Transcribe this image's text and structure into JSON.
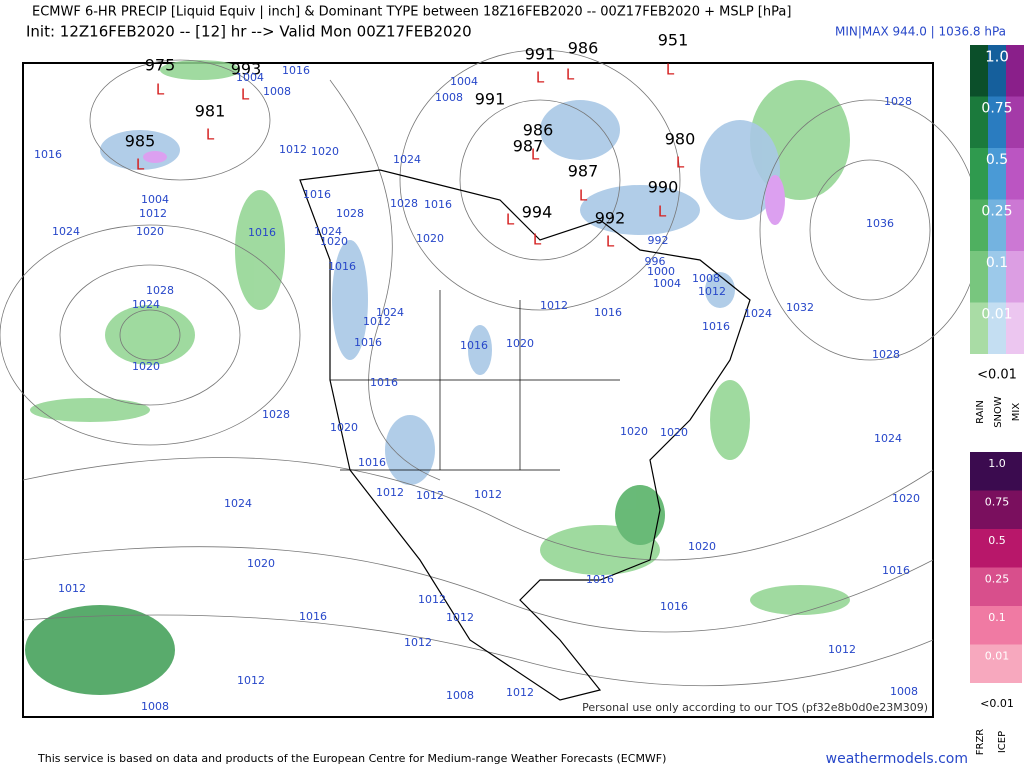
{
  "header": {
    "title": "ECMWF 6-HR PRECIP [Liquid Equiv | inch] & Dominant TYPE between 18Z16FEB2020 -- 00Z17FEB2020 + MSLP [hPa]",
    "subtitle": "Init: 12Z16FEB2020 -- [12] hr --> Valid Mon 00Z17FEB2020",
    "minmax": "MIN|MAX 944.0 | 1036.8 hPa"
  },
  "map": {
    "pressure_centers": [
      "975",
      "993",
      "981",
      "985",
      "991",
      "986",
      "951",
      "991",
      "986",
      "987",
      "987",
      "980",
      "990",
      "994",
      "992"
    ],
    "low_marker": "L",
    "isobar_labels": [
      "1016",
      "1024",
      "1020",
      "1004",
      "1012",
      "1028",
      "1024",
      "1020",
      "1028",
      "1020",
      "1024",
      "1020",
      "1012",
      "1016",
      "1012",
      "1008",
      "1012",
      "1012",
      "1016",
      "1020",
      "1012",
      "1016",
      "1024",
      "1032",
      "1028",
      "1036",
      "1028",
      "1024",
      "1020",
      "1020",
      "1016",
      "1016",
      "1016",
      "1012",
      "1008",
      "1012",
      "1012",
      "1012",
      "1008",
      "1012",
      "1004",
      "1008",
      "1024",
      "1028",
      "1016",
      "1020",
      "1012",
      "1024",
      "1016",
      "1016",
      "1016",
      "1012",
      "1020",
      "1020",
      "992",
      "996",
      "1000",
      "1004",
      "1008",
      "1012",
      "1016",
      "1016",
      "1016",
      "1020",
      "1024",
      "1016",
      "1028",
      "1020",
      "1012",
      "1008",
      "1016",
      "1004"
    ],
    "watermark": "Personal use only according to our TOS (pf32e8b0d0e23M309)"
  },
  "legend_rain": {
    "levels": [
      "1.0",
      "0.75",
      "0.5",
      "0.25",
      "0.1",
      "0.01"
    ],
    "below": "<0.01",
    "types": [
      "RAIN",
      "SNOW",
      "MIX"
    ]
  },
  "legend_ice": {
    "levels": [
      "1.0",
      "0.75",
      "0.5",
      "0.25",
      "0.1",
      "0.01"
    ],
    "below": "<0.01",
    "types": [
      "FRZR",
      "ICEP"
    ]
  },
  "footer": {
    "credit": "This service is based on data and products of the European Centre for Medium-range Weather Forecasts (ECMWF)",
    "site": "weathermodels.com"
  }
}
